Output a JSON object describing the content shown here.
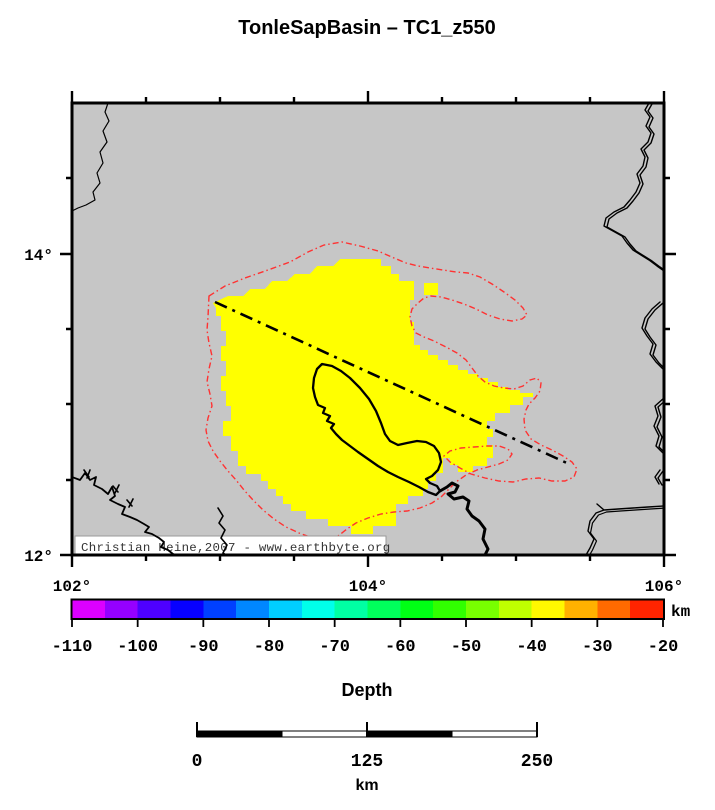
{
  "title": "TonleSapBasin – TC1_z550",
  "map": {
    "lon_labels": [
      "102°",
      "104°",
      "106°"
    ],
    "lat_labels": [
      "14°",
      "12°"
    ],
    "copyright": "Christian Heine,2007 - www.earthbyte.org",
    "land_color": "#c6c6c6",
    "basin_color": "#ffff00",
    "contour_color": "#ff3232",
    "lon_range": [
      102,
      106
    ],
    "lat_range": [
      12,
      15
    ]
  },
  "colorbar": {
    "axis_label": "Depth",
    "unit": "km",
    "min": -110,
    "max": -20,
    "tick_labels": [
      "-110",
      "-100",
      "-90",
      "-80",
      "-70",
      "-60",
      "-50",
      "-40",
      "-30",
      "-20"
    ],
    "segment_colors": [
      "#dc00ff",
      "#9500ff",
      "#4e00ff",
      "#0700ff",
      "#0040ff",
      "#0087ff",
      "#00ceff",
      "#00ffea",
      "#00ffa3",
      "#00ff5c",
      "#00ff15",
      "#31ff00",
      "#78ff00",
      "#bfff00",
      "#fff800",
      "#ffb100",
      "#ff6a00",
      "#ff2400"
    ]
  },
  "scalebar": {
    "tick_labels": [
      "0",
      "125",
      "250"
    ],
    "unit": "km",
    "length_km": 250
  }
}
